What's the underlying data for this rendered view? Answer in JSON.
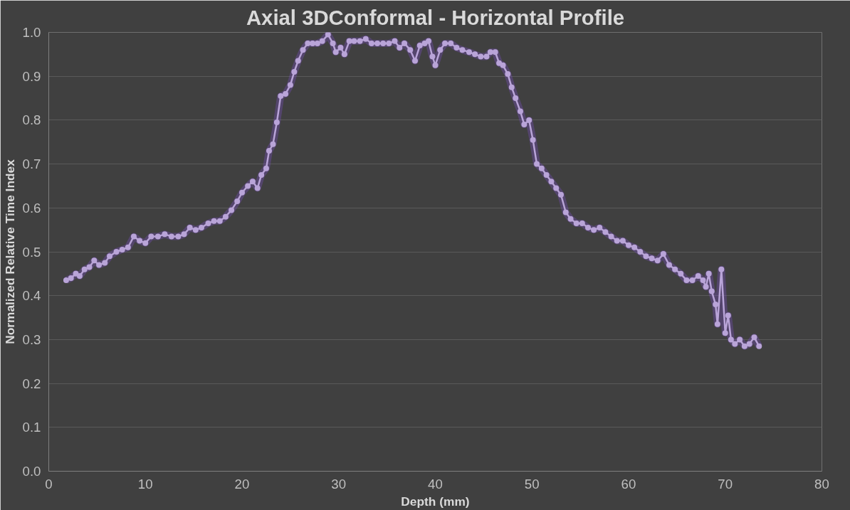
{
  "chart_data": {
    "type": "line",
    "title": "Axial 3DConformal - Horizontal Profile",
    "xlabel": "Depth (mm)",
    "ylabel": "Normalized Relative Time Index",
    "xlim": [
      0,
      80
    ],
    "xticks": [
      0,
      10,
      20,
      30,
      40,
      50,
      60,
      70,
      80
    ],
    "ylim": [
      0,
      1.0
    ],
    "yticks": [
      {
        "value": 0,
        "label": "0.0"
      },
      {
        "value": 0.1,
        "label": "0.1"
      },
      {
        "value": 0.2,
        "label": "0.2"
      },
      {
        "value": 0.3,
        "label": "0.3"
      },
      {
        "value": 0.4,
        "label": "0.4"
      },
      {
        "value": 0.5,
        "label": "0.5"
      },
      {
        "value": 0.6,
        "label": "0.6"
      },
      {
        "value": 0.7,
        "label": "0.7"
      },
      {
        "value": 0.8,
        "label": "0.8"
      },
      {
        "value": 0.9,
        "label": "0.9"
      },
      {
        "value": 1.0,
        "label": "1.0"
      }
    ],
    "grid": "y",
    "marker": "circle",
    "line_style": "solid",
    "series": [
      {
        "color": "#b9a4d8",
        "x": [
          1.8,
          2.3,
          2.8,
          3.2,
          3.7,
          4.2,
          4.7,
          5.2,
          5.8,
          6.3,
          7,
          7.6,
          8.2,
          8.8,
          9.4,
          10,
          10.6,
          11.3,
          12,
          12.7,
          13.4,
          14,
          14.6,
          15.2,
          15.8,
          16.5,
          17.1,
          17.7,
          18.3,
          18.9,
          19.5,
          20,
          20.6,
          21.1,
          21.6,
          22,
          22.5,
          22.8,
          23.2,
          23.6,
          24,
          24.5,
          25,
          25.4,
          25.8,
          26.3,
          26.8,
          27.3,
          27.8,
          28.3,
          28.9,
          29.4,
          29.7,
          30.2,
          30.6,
          31.1,
          31.6,
          32.2,
          32.8,
          33.4,
          34,
          34.6,
          35.2,
          35.8,
          36.3,
          36.8,
          37.4,
          37.9,
          38.4,
          38.9,
          39.3,
          39.7,
          40,
          40.5,
          41,
          41.6,
          42.2,
          42.8,
          43.5,
          44.1,
          44.7,
          45.3,
          45.7,
          46.2,
          46.6,
          47,
          47.5,
          47.9,
          48.3,
          48.8,
          49.2,
          49.7,
          50.1,
          50.5,
          51,
          51.5,
          52,
          52.5,
          53,
          53.5,
          54,
          54.6,
          55.2,
          55.8,
          56.4,
          57,
          57.6,
          58.2,
          58.8,
          59.4,
          60,
          60.6,
          61.2,
          61.8,
          62.4,
          63,
          63.6,
          64.2,
          64.8,
          65.4,
          66,
          66.6,
          67.2,
          67.7,
          68,
          68.3,
          68.6,
          69,
          69.2,
          69.6,
          70,
          70.3,
          70.6,
          71,
          71.5,
          72,
          72.5,
          73,
          73.5
        ],
        "values": [
          0.435,
          0.44,
          0.45,
          0.445,
          0.46,
          0.465,
          0.48,
          0.47,
          0.475,
          0.49,
          0.5,
          0.505,
          0.51,
          0.535,
          0.525,
          0.52,
          0.535,
          0.535,
          0.54,
          0.535,
          0.535,
          0.54,
          0.555,
          0.55,
          0.555,
          0.565,
          0.57,
          0.57,
          0.58,
          0.595,
          0.615,
          0.635,
          0.65,
          0.66,
          0.645,
          0.675,
          0.69,
          0.73,
          0.745,
          0.795,
          0.855,
          0.86,
          0.88,
          0.91,
          0.935,
          0.96,
          0.975,
          0.975,
          0.975,
          0.98,
          0.995,
          0.975,
          0.955,
          0.965,
          0.95,
          0.98,
          0.98,
          0.98,
          0.985,
          0.975,
          0.975,
          0.975,
          0.975,
          0.98,
          0.965,
          0.975,
          0.96,
          0.935,
          0.97,
          0.975,
          0.98,
          0.945,
          0.925,
          0.96,
          0.975,
          0.975,
          0.965,
          0.96,
          0.955,
          0.95,
          0.945,
          0.945,
          0.955,
          0.955,
          0.93,
          0.925,
          0.905,
          0.875,
          0.85,
          0.82,
          0.79,
          0.8,
          0.755,
          0.7,
          0.69,
          0.675,
          0.66,
          0.645,
          0.63,
          0.59,
          0.575,
          0.565,
          0.565,
          0.555,
          0.55,
          0.555,
          0.545,
          0.535,
          0.525,
          0.525,
          0.515,
          0.51,
          0.5,
          0.49,
          0.485,
          0.48,
          0.495,
          0.47,
          0.46,
          0.45,
          0.435,
          0.435,
          0.445,
          0.435,
          0.42,
          0.45,
          0.41,
          0.38,
          0.335,
          0.46,
          0.315,
          0.355,
          0.3,
          0.29,
          0.3,
          0.285,
          0.29,
          0.305,
          0.285
        ]
      }
    ]
  }
}
